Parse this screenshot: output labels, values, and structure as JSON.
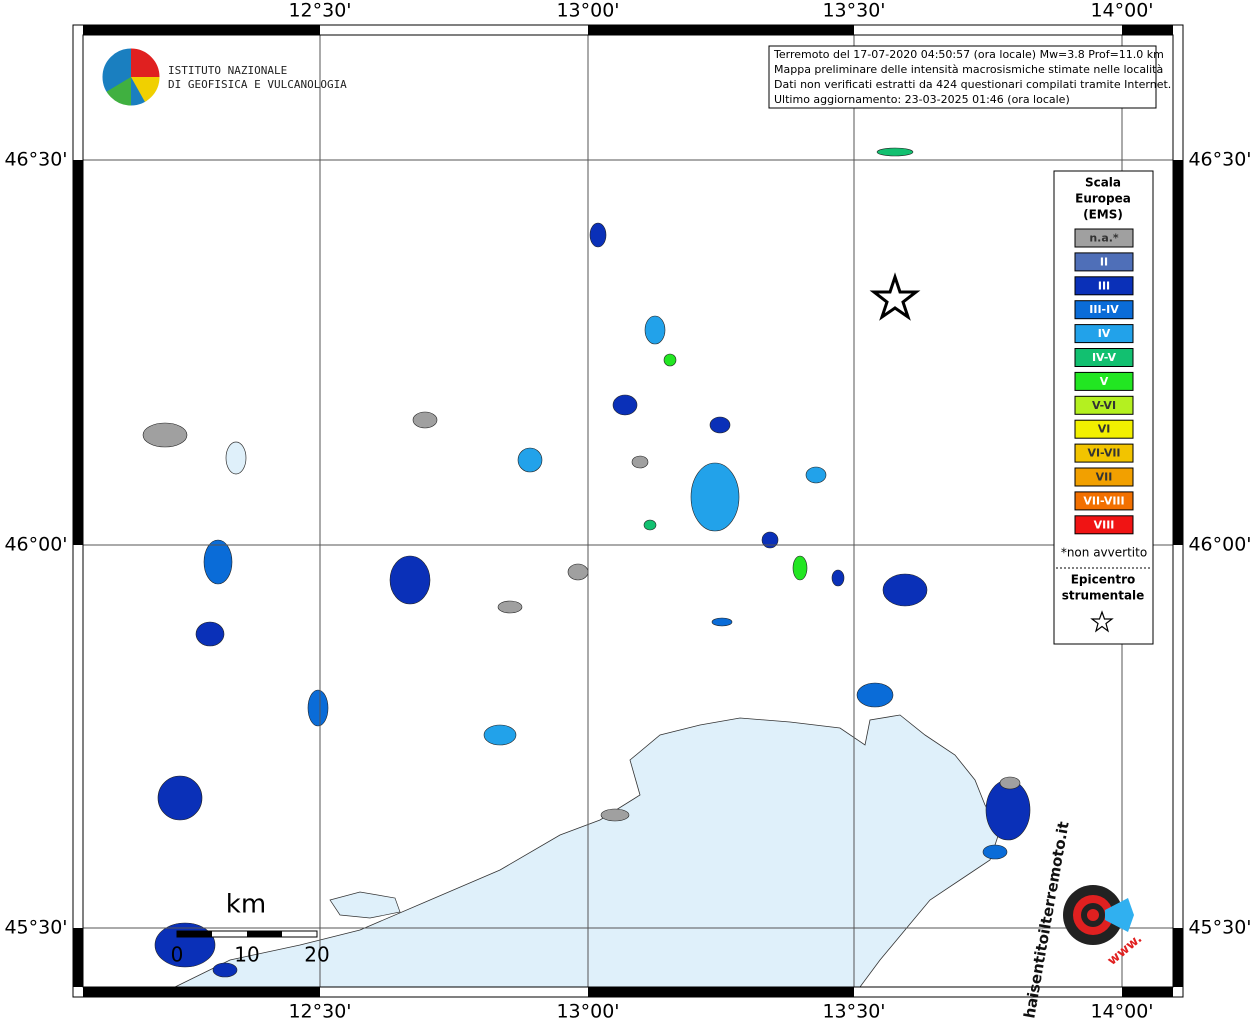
{
  "title_box": {
    "lines": [
      "Terremoto del 17-07-2020 04:50:57 (ora locale) Mw=3.8 Prof=11.0 km",
      "Mappa preliminare delle intensità macrosismiche stimate nelle località",
      "Dati non verificati estratti da 424 questionari compilati tramite Internet.",
      "Ultimo aggiornamento: 23-03-2025 01:46 (ora locale)"
    ]
  },
  "logo": {
    "lines": [
      "ISTITUTO NAZIONALE",
      "DI GEOFISICA E VULCANOLOGIA"
    ]
  },
  "graticule": {
    "lon_labels": [
      "12°30'",
      "13°00'",
      "13°30'",
      "14°00'"
    ],
    "lat_labels": [
      "46°30'",
      "46°00'",
      "45°30'"
    ]
  },
  "legend": {
    "title": [
      "Scala",
      "Europea",
      "(EMS)"
    ],
    "items": [
      {
        "label": "n.a.*",
        "color": "#a0a0a0"
      },
      {
        "label": "II",
        "color": "#4f6fb8"
      },
      {
        "label": "III",
        "color": "#0a30b8"
      },
      {
        "label": "III-IV",
        "color": "#0a6cd8"
      },
      {
        "label": "IV",
        "color": "#22a2ea"
      },
      {
        "label": "IV-V",
        "color": "#12c070"
      },
      {
        "label": "V",
        "color": "#22e622"
      },
      {
        "label": "V-VI",
        "color": "#b4f020"
      },
      {
        "label": "VI",
        "color": "#f2f000"
      },
      {
        "label": "VI-VII",
        "color": "#f2c400"
      },
      {
        "label": "VII",
        "color": "#f2a000"
      },
      {
        "label": "VII-VIII",
        "color": "#f27000"
      },
      {
        "label": "VIII",
        "color": "#f01414"
      }
    ],
    "note": "*non avvertito",
    "epicenter": [
      "Epicentro",
      "strumentale"
    ]
  },
  "scale_bar": {
    "unit": "km",
    "labels": [
      "0",
      "10",
      "20"
    ]
  },
  "watermark": {
    "site": "haisentitoilterremoto.it",
    "prefix": "www."
  }
}
